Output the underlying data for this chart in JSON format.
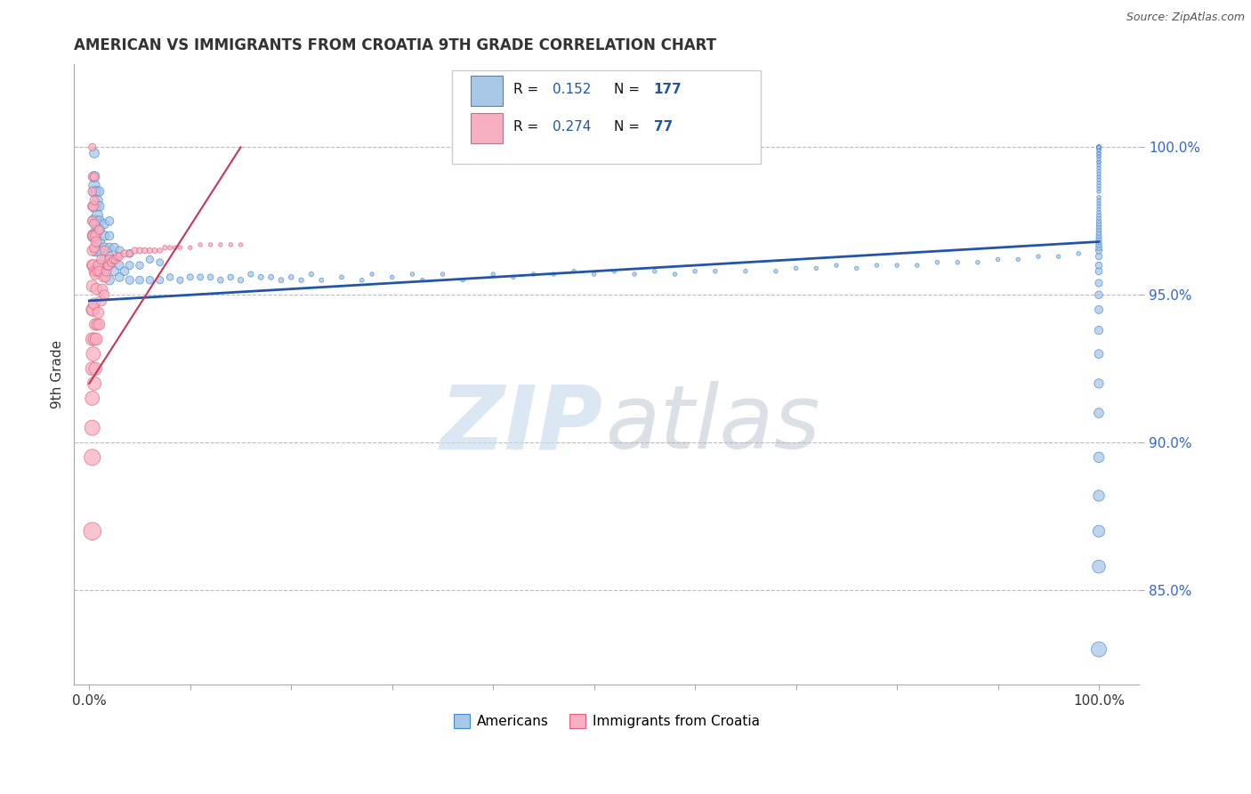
{
  "title": "AMERICAN VS IMMIGRANTS FROM CROATIA 9TH GRADE CORRELATION CHART",
  "source": "Source: ZipAtlas.com",
  "ylabel": "9th Grade",
  "blue_R": 0.152,
  "blue_N": 177,
  "pink_R": 0.274,
  "pink_N": 77,
  "blue_color": "#a8c8e8",
  "blue_edge_color": "#4488cc",
  "pink_color": "#f8b0c0",
  "pink_edge_color": "#e06080",
  "blue_line_color": "#2255aa",
  "pink_line_color": "#cc3355",
  "legend_blue_label": "Americans",
  "legend_pink_label": "Immigrants from Croatia",
  "xlim": [
    -0.015,
    1.04
  ],
  "ylim": [
    0.818,
    1.028
  ],
  "yticks": [
    0.85,
    0.9,
    0.95,
    1.0
  ],
  "xtick_positions": [
    0.0,
    0.1,
    0.2,
    0.3,
    0.4,
    0.5,
    0.6,
    0.7,
    0.8,
    0.9,
    1.0
  ],
  "blue_line_x": [
    0.0,
    1.0
  ],
  "blue_line_y": [
    0.948,
    0.968
  ],
  "pink_line_x": [
    0.0,
    0.15
  ],
  "pink_line_y": [
    0.92,
    1.0
  ],
  "blue_x": [
    0.005,
    0.005,
    0.005,
    0.005,
    0.005,
    0.005,
    0.005,
    0.007,
    0.007,
    0.007,
    0.007,
    0.007,
    0.008,
    0.008,
    0.008,
    0.01,
    0.01,
    0.01,
    0.01,
    0.01,
    0.01,
    0.01,
    0.015,
    0.015,
    0.015,
    0.015,
    0.015,
    0.02,
    0.02,
    0.02,
    0.02,
    0.02,
    0.02,
    0.025,
    0.025,
    0.025,
    0.03,
    0.03,
    0.03,
    0.035,
    0.04,
    0.04,
    0.04,
    0.05,
    0.05,
    0.06,
    0.06,
    0.07,
    0.07,
    0.08,
    0.09,
    0.1,
    0.11,
    0.12,
    0.13,
    0.14,
    0.15,
    0.16,
    0.17,
    0.18,
    0.19,
    0.2,
    0.21,
    0.22,
    0.23,
    0.25,
    0.27,
    0.28,
    0.3,
    0.32,
    0.33,
    0.35,
    0.37,
    0.4,
    0.42,
    0.44,
    0.46,
    0.48,
    0.5,
    0.52,
    0.54,
    0.56,
    0.58,
    0.6,
    0.62,
    0.65,
    0.68,
    0.7,
    0.72,
    0.74,
    0.76,
    0.78,
    0.8,
    0.82,
    0.84,
    0.86,
    0.88,
    0.9,
    0.92,
    0.94,
    0.96,
    0.98,
    1.0,
    1.0,
    1.0,
    1.0,
    1.0,
    1.0,
    1.0,
    1.0,
    1.0,
    1.0,
    1.0,
    1.0,
    1.0,
    1.0,
    1.0,
    1.0,
    1.0,
    1.0,
    1.0,
    1.0,
    1.0,
    1.0,
    1.0,
    1.0,
    1.0,
    1.0,
    1.0,
    1.0,
    1.0,
    1.0,
    1.0,
    1.0,
    1.0,
    1.0,
    1.0,
    1.0,
    1.0,
    1.0,
    1.0,
    1.0,
    1.0,
    1.0,
    1.0,
    1.0,
    1.0,
    1.0,
    1.0,
    1.0,
    1.0,
    1.0,
    1.0,
    1.0,
    1.0,
    1.0,
    1.0,
    1.0,
    1.0,
    1.0,
    1.0,
    1.0,
    1.0,
    1.0,
    1.0,
    1.0,
    1.0,
    1.0,
    1.0,
    1.0,
    1.0,
    1.0,
    1.0,
    1.0,
    1.0,
    1.0,
    1.0
  ],
  "blue_y": [
    0.97,
    0.975,
    0.98,
    0.985,
    0.987,
    0.99,
    0.998,
    0.965,
    0.97,
    0.975,
    0.98,
    0.985,
    0.972,
    0.977,
    0.982,
    0.96,
    0.965,
    0.968,
    0.972,
    0.975,
    0.98,
    0.985,
    0.958,
    0.962,
    0.966,
    0.97,
    0.974,
    0.955,
    0.96,
    0.963,
    0.966,
    0.97,
    0.975,
    0.958,
    0.962,
    0.966,
    0.956,
    0.96,
    0.965,
    0.958,
    0.955,
    0.96,
    0.964,
    0.955,
    0.96,
    0.955,
    0.962,
    0.955,
    0.961,
    0.956,
    0.955,
    0.956,
    0.956,
    0.956,
    0.955,
    0.956,
    0.955,
    0.957,
    0.956,
    0.956,
    0.955,
    0.956,
    0.955,
    0.957,
    0.955,
    0.956,
    0.955,
    0.957,
    0.956,
    0.957,
    0.955,
    0.957,
    0.955,
    0.957,
    0.956,
    0.957,
    0.957,
    0.958,
    0.957,
    0.958,
    0.957,
    0.958,
    0.957,
    0.958,
    0.958,
    0.958,
    0.958,
    0.959,
    0.959,
    0.96,
    0.959,
    0.96,
    0.96,
    0.96,
    0.961,
    0.961,
    0.961,
    0.962,
    0.962,
    0.963,
    0.963,
    0.964,
    0.83,
    0.858,
    0.87,
    0.882,
    0.895,
    0.91,
    0.92,
    0.93,
    0.938,
    0.945,
    0.95,
    0.954,
    0.958,
    0.96,
    0.963,
    0.965,
    0.966,
    0.967,
    0.968,
    0.969,
    0.97,
    0.971,
    0.972,
    0.973,
    0.974,
    0.975,
    0.976,
    0.977,
    0.978,
    0.979,
    0.98,
    0.981,
    0.982,
    0.983,
    0.985,
    0.986,
    0.987,
    0.988,
    0.989,
    0.99,
    0.991,
    0.992,
    0.993,
    0.994,
    0.995,
    0.995,
    0.996,
    0.997,
    0.997,
    0.998,
    0.998,
    0.999,
    0.999,
    1.0,
    1.0,
    1.0,
    1.0,
    1.0,
    1.0,
    1.0,
    1.0,
    1.0,
    1.0,
    1.0,
    1.0,
    1.0,
    1.0,
    1.0,
    1.0,
    1.0,
    1.0,
    1.0,
    1.0,
    1.0,
    1.0
  ],
  "blue_s": [
    120,
    100,
    90,
    85,
    80,
    75,
    60,
    90,
    80,
    75,
    70,
    65,
    80,
    75,
    70,
    80,
    75,
    70,
    68,
    65,
    60,
    55,
    65,
    62,
    60,
    58,
    55,
    60,
    58,
    55,
    52,
    50,
    48,
    55,
    52,
    50,
    50,
    48,
    45,
    48,
    45,
    42,
    40,
    40,
    38,
    38,
    35,
    35,
    32,
    30,
    28,
    26,
    25,
    24,
    23,
    22,
    21,
    20,
    19,
    18,
    17,
    16,
    15,
    14,
    13,
    12,
    11,
    10,
    10,
    10,
    10,
    10,
    10,
    10,
    10,
    10,
    10,
    10,
    10,
    10,
    10,
    10,
    10,
    10,
    10,
    10,
    10,
    10,
    10,
    10,
    10,
    10,
    10,
    10,
    10,
    10,
    10,
    10,
    10,
    10,
    10,
    10,
    150,
    110,
    90,
    80,
    70,
    60,
    55,
    50,
    45,
    42,
    38,
    35,
    32,
    30,
    28,
    26,
    24,
    22,
    21,
    20,
    19,
    18,
    17,
    16,
    15,
    14,
    13,
    12,
    11,
    10,
    10,
    10,
    10,
    10,
    10,
    10,
    10,
    10,
    10,
    10,
    10,
    10,
    10,
    10,
    10,
    10,
    10,
    10,
    10,
    10,
    10,
    10,
    10,
    10,
    10,
    10,
    10,
    10,
    10,
    10,
    10,
    10,
    10,
    10,
    10,
    10,
    10,
    10,
    10,
    10,
    10,
    10,
    10,
    10,
    10
  ],
  "pink_x": [
    0.003,
    0.003,
    0.003,
    0.003,
    0.003,
    0.003,
    0.003,
    0.003,
    0.003,
    0.003,
    0.003,
    0.003,
    0.003,
    0.003,
    0.003,
    0.003,
    0.004,
    0.004,
    0.004,
    0.004,
    0.004,
    0.005,
    0.005,
    0.005,
    0.005,
    0.005,
    0.005,
    0.005,
    0.005,
    0.006,
    0.006,
    0.006,
    0.006,
    0.007,
    0.007,
    0.007,
    0.008,
    0.008,
    0.009,
    0.009,
    0.01,
    0.01,
    0.01,
    0.012,
    0.012,
    0.013,
    0.014,
    0.015,
    0.015,
    0.016,
    0.017,
    0.018,
    0.019,
    0.02,
    0.022,
    0.024,
    0.026,
    0.028,
    0.03,
    0.035,
    0.04,
    0.045,
    0.05,
    0.055,
    0.06,
    0.065,
    0.07,
    0.075,
    0.08,
    0.085,
    0.09,
    0.1,
    0.11,
    0.12,
    0.13,
    0.14,
    0.15
  ],
  "pink_y": [
    0.87,
    0.895,
    0.905,
    0.915,
    0.925,
    0.935,
    0.945,
    0.953,
    0.96,
    0.965,
    0.97,
    0.975,
    0.98,
    0.985,
    0.99,
    1.0,
    0.93,
    0.945,
    0.96,
    0.97,
    0.98,
    0.92,
    0.935,
    0.947,
    0.958,
    0.966,
    0.974,
    0.982,
    0.99,
    0.925,
    0.94,
    0.957,
    0.97,
    0.935,
    0.952,
    0.968,
    0.94,
    0.958,
    0.944,
    0.96,
    0.94,
    0.958,
    0.972,
    0.948,
    0.962,
    0.952,
    0.956,
    0.95,
    0.965,
    0.956,
    0.958,
    0.96,
    0.96,
    0.962,
    0.961,
    0.962,
    0.962,
    0.963,
    0.963,
    0.964,
    0.964,
    0.965,
    0.965,
    0.965,
    0.965,
    0.965,
    0.965,
    0.966,
    0.966,
    0.966,
    0.966,
    0.966,
    0.967,
    0.967,
    0.967,
    0.967,
    0.967
  ],
  "pink_s": [
    200,
    170,
    150,
    130,
    120,
    110,
    100,
    90,
    80,
    70,
    65,
    60,
    55,
    50,
    45,
    35,
    130,
    110,
    90,
    75,
    65,
    120,
    100,
    85,
    75,
    65,
    58,
    52,
    45,
    110,
    90,
    75,
    65,
    95,
    80,
    68,
    85,
    70,
    80,
    68,
    80,
    65,
    55,
    70,
    60,
    65,
    62,
    65,
    55,
    62,
    60,
    58,
    56,
    55,
    50,
    48,
    45,
    43,
    40,
    35,
    30,
    28,
    25,
    22,
    20,
    18,
    16,
    14,
    12,
    11,
    10,
    10,
    10,
    10,
    10,
    10,
    10
  ]
}
